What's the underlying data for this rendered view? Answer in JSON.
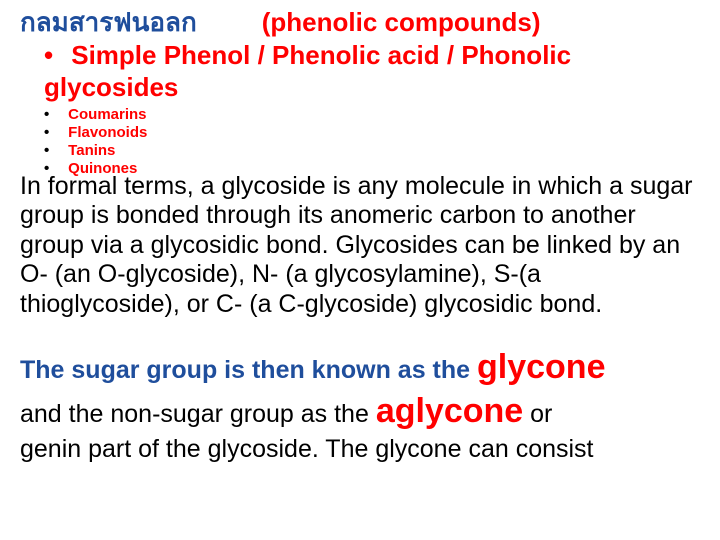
{
  "colors": {
    "red": "#ff0000",
    "blue": "#1f4e9c",
    "black": "#000000",
    "bg": "#ffffff"
  },
  "title": {
    "thai": "กลมสารฟนอลก",
    "eng": "(phenolic compounds)"
  },
  "main_bullet": {
    "dot": "•",
    "text": "Simple Phenol / Phenolic acid / Phonolic glycosides"
  },
  "sub_bullets": [
    {
      "dot": "•",
      "text": "Coumarins"
    },
    {
      "dot": "•",
      "text": "Flavonoids"
    },
    {
      "dot": "•",
      "text": "Tanins"
    },
    {
      "dot": "•",
      "text": "Quinones"
    }
  ],
  "body_text": "In formal terms, a glycoside is any molecule in which a sugar group is bonded through its anomeric carbon to another group via a glycosidic bond. Glycosides can be linked by an O- (an O-glycoside), N- (a glycosylamine), S-(a thioglycoside), or C- (a C-glycoside) glycosidic bond.",
  "sugar": {
    "lead_blue": "The sugar group is then known as the ",
    "glycone": "glycone",
    "mid_black": "and the non-sugar group as the ",
    "aglycone": "aglycone",
    "or": " or",
    "tail": "genin part of the glycoside. The glycone can consist"
  },
  "fontsizes": {
    "title": 26,
    "sub": 15,
    "body": 25,
    "bigword": 34
  }
}
